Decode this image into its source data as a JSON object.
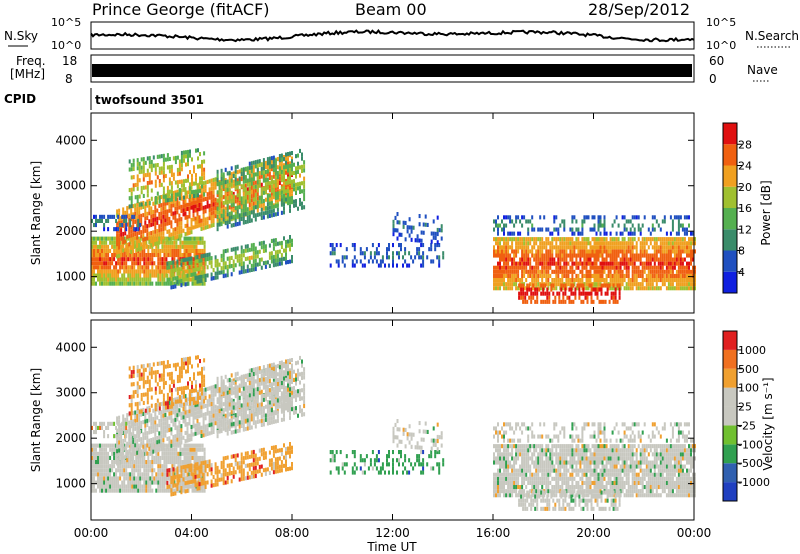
{
  "header": {
    "station": "Prince George (fitACF)",
    "beam": "Beam 00",
    "date": "28/Sep/2012"
  },
  "top_panels": {
    "nsky_label": "N.Sky",
    "nsky_ticks": [
      "10^5",
      "10^0"
    ],
    "nsearch_label": "N.Search",
    "nsearch_ticks": [
      "10^5",
      "10^0"
    ],
    "freq_label": "Freq.",
    "freq_unit": "[MHz]",
    "freq_ticks": [
      "18",
      "8"
    ],
    "nave_label": "Nave",
    "nave_ticks": [
      "60",
      "0"
    ],
    "cpid_label": "CPID",
    "cpid_value": "twofsound 3501"
  },
  "colors": {
    "power": [
      "#1020e0",
      "#2050c0",
      "#3a8c6a",
      "#55b050",
      "#a0c030",
      "#f0a020",
      "#f06010",
      "#e01010"
    ],
    "velocity": [
      "#2040c0",
      "#3060b0",
      "#30a050",
      "#70c030",
      "#c8c8c0",
      "#c8c8c0",
      "#f0a030",
      "#f07020",
      "#e02020"
    ]
  },
  "chart_data": [
    {
      "type": "heatmap",
      "title": "Power",
      "ylabel": "Slant Range [km]",
      "yticks": [
        "1000",
        "2000",
        "3000",
        "4000"
      ],
      "ylim": [
        200,
        4600
      ],
      "xlim": [
        0,
        24
      ],
      "colorbar_label": "Power [dB]",
      "colorbar_ticks": [
        "4",
        "8",
        "12",
        "16",
        "20",
        "24",
        "28"
      ]
    },
    {
      "type": "heatmap",
      "title": "Velocity",
      "ylabel": "Slant Range [km]",
      "yticks": [
        "1000",
        "2000",
        "3000",
        "4000"
      ],
      "ylim": [
        200,
        4600
      ],
      "xlim": [
        0,
        24
      ],
      "xlabel": "Time UT",
      "xticks": [
        "00:00",
        "04:00",
        "08:00",
        "12:00",
        "16:00",
        "20:00",
        "00:00"
      ],
      "colorbar_label": "Velocity [m s⁻¹]",
      "colorbar_ticks": [
        "1000",
        "500",
        "100",
        "25",
        "-25",
        "-100",
        "-500",
        "-1000"
      ]
    }
  ]
}
